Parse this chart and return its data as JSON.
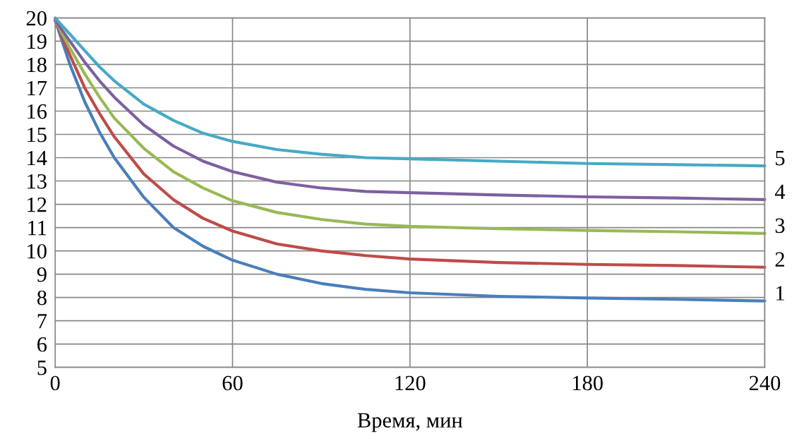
{
  "chart_data": {
    "type": "line",
    "xlabel": "Время, мин",
    "x": [
      0,
      5,
      10,
      15,
      20,
      30,
      40,
      50,
      60,
      75,
      90,
      105,
      120,
      150,
      180,
      210,
      240
    ],
    "series": [
      {
        "name": "1",
        "color": "#4a7ebb",
        "values": [
          19.9,
          18.0,
          16.4,
          15.1,
          14.0,
          12.3,
          11.0,
          10.2,
          9.6,
          9.0,
          8.6,
          8.35,
          8.2,
          8.05,
          7.98,
          7.92,
          7.85
        ]
      },
      {
        "name": "2",
        "color": "#be4b48",
        "values": [
          19.9,
          18.4,
          17.0,
          15.9,
          14.9,
          13.3,
          12.2,
          11.4,
          10.85,
          10.3,
          10.0,
          9.8,
          9.65,
          9.5,
          9.42,
          9.37,
          9.3
        ]
      },
      {
        "name": "3",
        "color": "#98b954",
        "values": [
          19.9,
          18.7,
          17.6,
          16.6,
          15.7,
          14.4,
          13.4,
          12.7,
          12.15,
          11.65,
          11.35,
          11.15,
          11.05,
          10.95,
          10.88,
          10.82,
          10.75
        ]
      },
      {
        "name": "4",
        "color": "#7d60a0",
        "values": [
          19.9,
          19.0,
          18.1,
          17.3,
          16.6,
          15.4,
          14.5,
          13.85,
          13.4,
          12.95,
          12.7,
          12.55,
          12.5,
          12.4,
          12.32,
          12.27,
          12.2
        ]
      },
      {
        "name": "5",
        "color": "#46aac5",
        "values": [
          20.0,
          19.3,
          18.6,
          17.9,
          17.3,
          16.3,
          15.6,
          15.05,
          14.7,
          14.35,
          14.15,
          14.0,
          13.95,
          13.85,
          13.75,
          13.7,
          13.65
        ]
      }
    ],
    "xlim": [
      0,
      240
    ],
    "xticks": [
      0,
      60,
      120,
      180,
      240
    ],
    "ylim": [
      5,
      20
    ],
    "yticks": [
      5,
      6,
      7,
      8,
      9,
      10,
      11,
      12,
      13,
      14,
      15,
      16,
      17,
      18,
      19,
      20
    ],
    "grid": true,
    "marker": "none",
    "line_style": "solid"
  }
}
